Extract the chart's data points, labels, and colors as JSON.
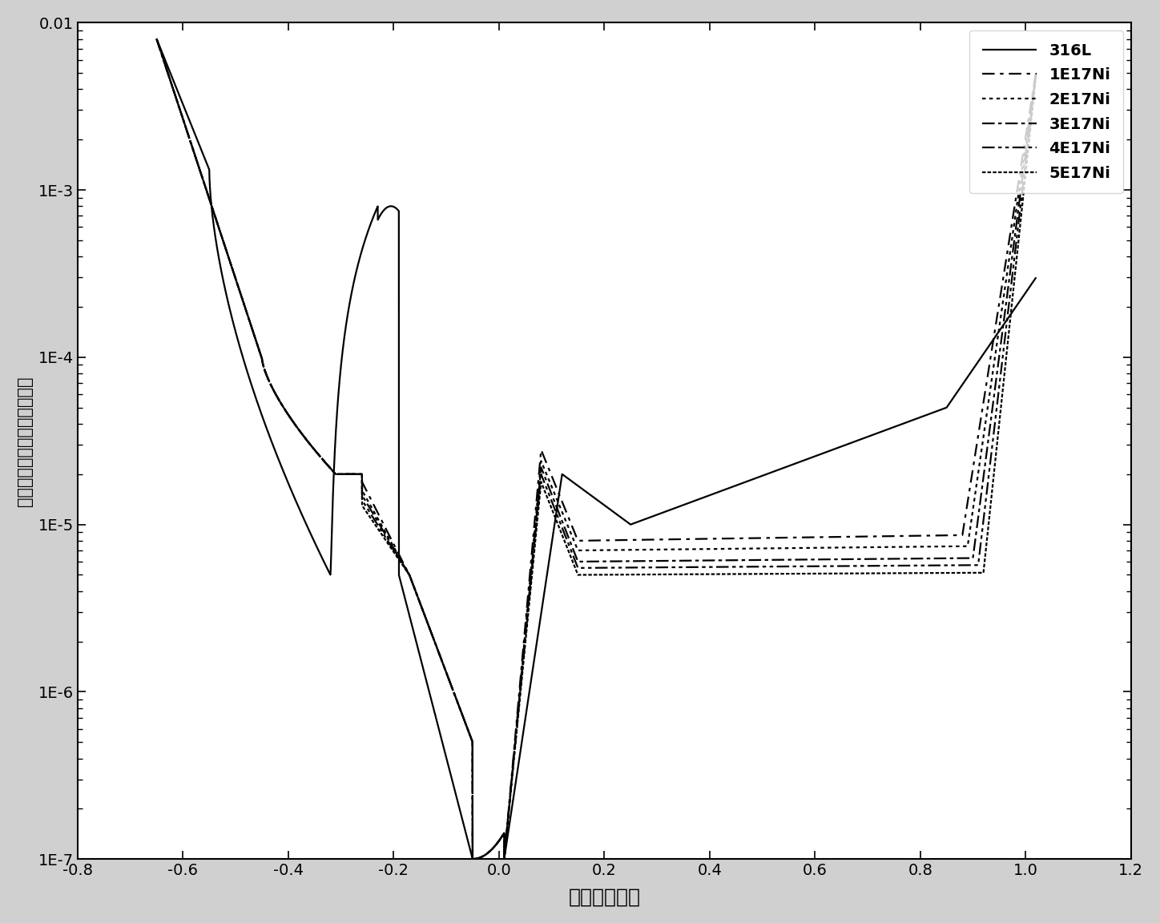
{
  "xlabel": "电势（伏特）",
  "ylabel": "电流密度（安培每平方厘米）",
  "xlim": [
    -0.8,
    1.2
  ],
  "ylim": [
    1e-07,
    0.01
  ],
  "xticks": [
    -0.8,
    -0.6,
    -0.4,
    -0.2,
    0.0,
    0.2,
    0.4,
    0.6,
    0.8,
    1.0,
    1.2
  ],
  "ytick_labels": [
    "1E-7",
    "1E-6",
    "1E-5",
    "1E-4",
    "1E-3",
    "0.01"
  ],
  "ytick_values": [
    1e-07,
    1e-06,
    1e-05,
    0.0001,
    0.001,
    0.01
  ],
  "legend_labels": [
    "316L",
    "1E17Ni",
    "2E17Ni",
    "3E17Ni",
    "4E17Ni",
    "5E17Ni"
  ],
  "background_color": "#ffffff",
  "outer_bg": "#d0d0d0",
  "linewidth": 1.6,
  "xlabel_fontsize": 18,
  "ylabel_fontsize": 15,
  "tick_fontsize": 14,
  "legend_fontsize": 14
}
